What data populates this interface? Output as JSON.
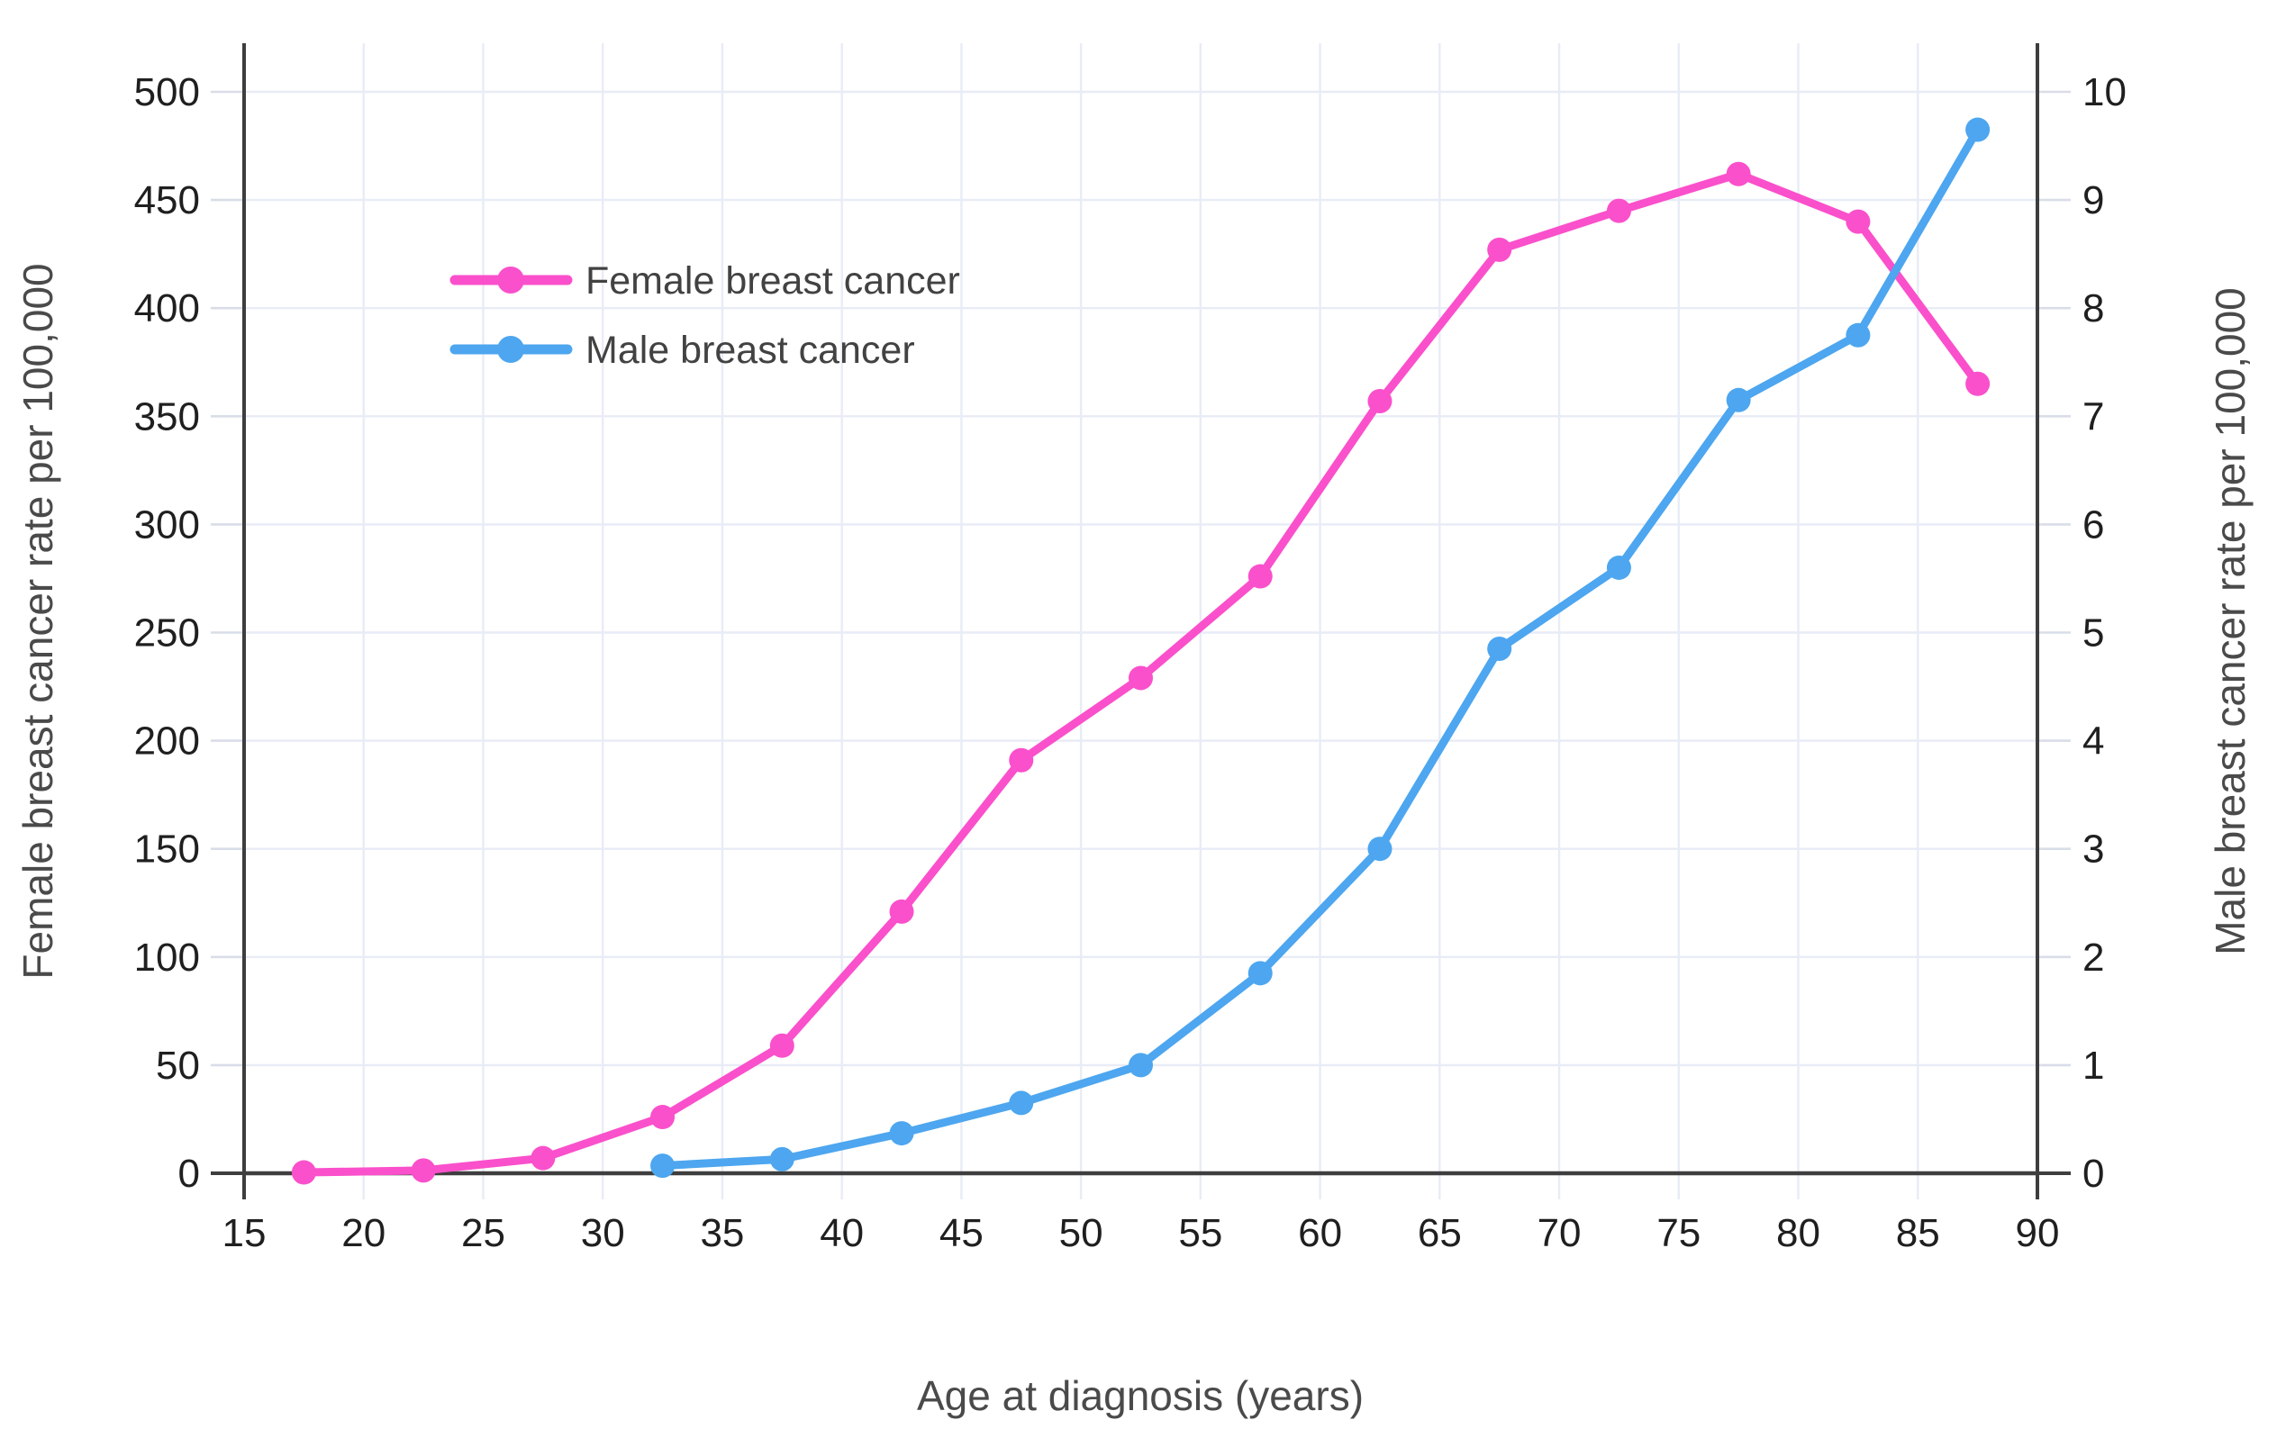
{
  "chart_data": {
    "type": "line",
    "title": "",
    "xlabel": "Age at diagnosis (years)",
    "ylabel_left": "Female breast cancer rate per 100,000",
    "ylabel_right": "Male breast cancer rate per 100,000",
    "xlim": [
      15,
      90
    ],
    "ylim_left": [
      0,
      500
    ],
    "ylim_right": [
      0,
      10
    ],
    "grid": true,
    "legend_position": "inside-upper-left",
    "x_ticks": [
      15,
      20,
      25,
      30,
      35,
      40,
      45,
      50,
      55,
      60,
      65,
      70,
      75,
      80,
      85,
      90
    ],
    "y_left_ticks": [
      0,
      50,
      100,
      150,
      200,
      250,
      300,
      350,
      400,
      450,
      500
    ],
    "y_right_ticks": [
      0,
      1,
      2,
      3,
      4,
      5,
      6,
      7,
      8,
      9,
      10
    ],
    "series": [
      {
        "name": "Female breast cancer",
        "axis": "left",
        "color": "#fa50cb",
        "x": [
          17.5,
          22.5,
          27.5,
          32.5,
          37.5,
          42.5,
          47.5,
          52.5,
          57.5,
          62.5,
          67.5,
          72.5,
          77.5,
          82.5,
          87.5
        ],
        "values": [
          0.4,
          1.3,
          7,
          26,
          59,
          121,
          191,
          229,
          276,
          357,
          427,
          445,
          462,
          440,
          365
        ]
      },
      {
        "name": "Male breast cancer",
        "axis": "right",
        "color": "#4da6ef",
        "x": [
          32.5,
          37.5,
          42.5,
          47.5,
          52.5,
          57.5,
          62.5,
          67.5,
          72.5,
          77.5,
          82.5,
          87.5
        ],
        "values": [
          0.07,
          0.13,
          0.37,
          0.65,
          1.0,
          1.85,
          3.0,
          4.85,
          5.6,
          7.15,
          7.75,
          9.65
        ]
      }
    ]
  },
  "colors": {
    "female_line": "#fa50cb",
    "male_line": "#4da6ef",
    "gridline": "#e8ecf6",
    "axis_line": "#3e3e3e",
    "minor_tick": "#d9dde8",
    "tick_text": "#1f1f1f",
    "title_text": "#4a4a4a",
    "background": "#ffffff"
  }
}
